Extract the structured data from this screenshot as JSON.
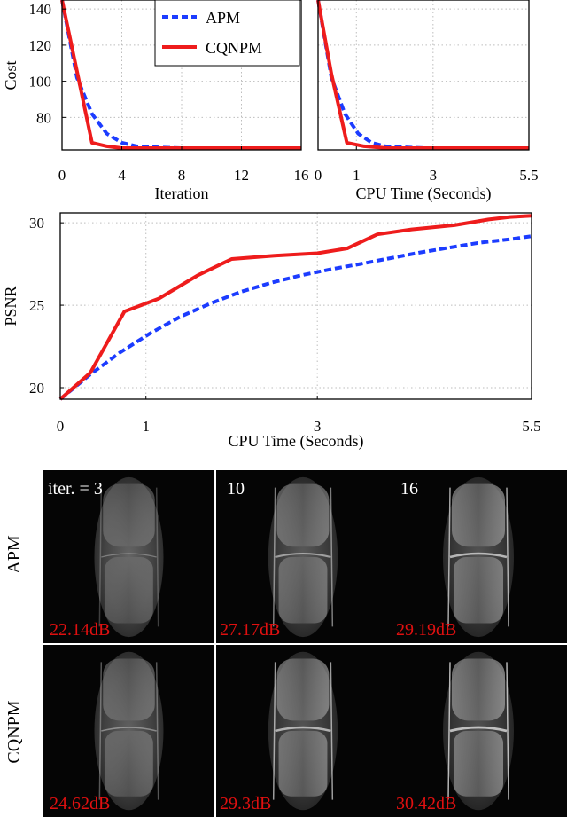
{
  "chart_data": [
    {
      "type": "line",
      "xlabel": "Iteration",
      "ylabel": "Cost",
      "xlim": [
        0,
        16
      ],
      "ylim": [
        62,
        145
      ],
      "xticks": [
        "0",
        "4",
        "8",
        "12",
        "16"
      ],
      "yticks": [
        "80",
        "100",
        "120",
        "140"
      ],
      "grid": true,
      "legend": {
        "placement": "top-right",
        "entries": [
          "APM",
          "CQNPM"
        ]
      },
      "series": [
        {
          "name": "APM",
          "style": "dashed",
          "color": "#1c3cff",
          "x": [
            0,
            1,
            2,
            3,
            4,
            5,
            6,
            8,
            10,
            12,
            14,
            16
          ],
          "y": [
            145,
            102,
            82,
            71,
            66,
            64,
            63.5,
            63,
            63,
            63,
            63,
            63
          ]
        },
        {
          "name": "CQNPM",
          "style": "solid",
          "color": "#ee1c1c",
          "x": [
            0,
            2,
            3,
            4,
            6,
            8,
            10,
            12,
            14,
            16
          ],
          "y": [
            145,
            66,
            64,
            63,
            63,
            63,
            63,
            63,
            63,
            63
          ]
        }
      ]
    },
    {
      "type": "line",
      "xlabel": "CPU Time (Seconds)",
      "ylabel": "",
      "xlim": [
        0,
        5.5
      ],
      "ylim": [
        62,
        145
      ],
      "xticks": [
        "0",
        "1",
        "3",
        "5.5"
      ],
      "grid": true,
      "series": [
        {
          "name": "APM",
          "style": "dashed",
          "color": "#1c3cff",
          "x": [
            0,
            0.35,
            0.7,
            1.05,
            1.4,
            1.75,
            2.1,
            2.8,
            3.5,
            4.2,
            4.9,
            5.5
          ],
          "y": [
            145,
            102,
            82,
            71,
            66,
            64,
            63.5,
            63,
            63,
            63,
            63,
            63
          ]
        },
        {
          "name": "CQNPM",
          "style": "solid",
          "color": "#ee1c1c",
          "x": [
            0,
            0.35,
            0.75,
            1.2,
            1.8,
            2.5,
            3.5,
            4.5,
            5.5
          ],
          "y": [
            145,
            104,
            66,
            64,
            63,
            63,
            63,
            63,
            63
          ]
        }
      ]
    },
    {
      "type": "line",
      "xlabel": "CPU Time (Seconds)",
      "ylabel": "PSNR",
      "xlim": [
        0,
        5.5
      ],
      "ylim": [
        19.3,
        30.6
      ],
      "xticks": [
        "0",
        "1",
        "3",
        "5.5"
      ],
      "yticks": [
        "20",
        "25",
        "30"
      ],
      "grid": true,
      "series": [
        {
          "name": "APM",
          "style": "dashed",
          "color": "#1c3cff",
          "x": [
            0,
            0.35,
            0.7,
            1.05,
            1.4,
            1.75,
            2.1,
            2.45,
            2.8,
            3.15,
            3.5,
            3.85,
            4.2,
            4.55,
            4.9,
            5.25,
            5.5
          ],
          "y": [
            19.3,
            20.8,
            22.14,
            23.3,
            24.3,
            25.1,
            25.8,
            26.35,
            26.8,
            27.17,
            27.5,
            27.85,
            28.2,
            28.5,
            28.8,
            29.0,
            29.19
          ]
        },
        {
          "name": "CQNPM",
          "style": "solid",
          "color": "#ee1c1c",
          "x": [
            0,
            0.35,
            0.75,
            1.15,
            1.6,
            2.0,
            2.5,
            3.0,
            3.35,
            3.7,
            4.1,
            4.6,
            5.0,
            5.25,
            5.5
          ],
          "y": [
            19.3,
            20.9,
            24.62,
            25.4,
            26.8,
            27.8,
            28.0,
            28.15,
            28.45,
            29.3,
            29.6,
            29.85,
            30.2,
            30.35,
            30.42
          ]
        }
      ]
    }
  ],
  "panels": {
    "iter_labels": [
      "iter. = 3",
      "10",
      "16"
    ],
    "rows": [
      {
        "label": "APM",
        "psnr": [
          "22.14dB",
          "27.17dB",
          "29.19dB"
        ]
      },
      {
        "label": "CQNPM",
        "psnr": [
          "24.62dB",
          "29.3dB",
          "30.42dB"
        ]
      }
    ]
  }
}
